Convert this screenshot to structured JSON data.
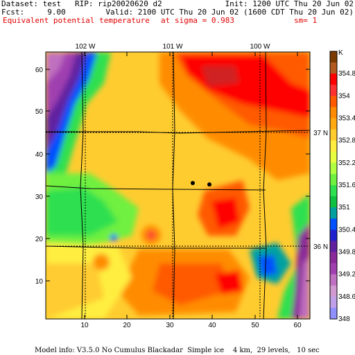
{
  "header": {
    "line1_left": "Dataset: test   RIP: rip20020620 d2",
    "line1_right": "Init: 1200 UTC Thu 20 Jun 02",
    "line2_left": "Fcst:     9.00",
    "line2_right": "Valid: 2100 UTC Thu 20 Jun 02 (1600 CDT Thu 20 Jun 02)",
    "line3_field": "Equivalent potential temperature",
    "line3_level": "at sigma = 0.983",
    "line3_sm": "sm= 1"
  },
  "map": {
    "top_lon_labels": [
      "102 W",
      "101 W",
      "100 W"
    ],
    "right_lat_labels": [
      "37 N",
      "36 N"
    ],
    "y_ticks": [
      "60",
      "50",
      "40",
      "30",
      "20",
      "10"
    ],
    "x_ticks": [
      "10",
      "20",
      "30",
      "40",
      "50",
      "60"
    ]
  },
  "colorbar": {
    "unit": "K",
    "labels": [
      "354.8",
      "354",
      "353.4",
      "352.8",
      "352.2",
      "351.6",
      "351",
      "350.4",
      "349.8",
      "349.2",
      "348.6",
      "348"
    ],
    "colors": [
      "#7a3a00",
      "#b05a20",
      "#ff0000",
      "#ff3030",
      "#ff5a00",
      "#ff8c00",
      "#ffaa10",
      "#ffcc30",
      "#ffee40",
      "#e8ff40",
      "#b0ff40",
      "#70f040",
      "#2ee050",
      "#10c040",
      "#00a0a0",
      "#0050ff",
      "#2020d0",
      "#6020a0",
      "#8a2a9a",
      "#a040b0",
      "#c070c0",
      "#d09ad0",
      "#c0a0e8",
      "#9090ff"
    ]
  },
  "footer": {
    "text": "Model info: V3.5.0 No Cumulus Blackadar  Simple ice    4 km,  29 levels,   10 sec"
  }
}
